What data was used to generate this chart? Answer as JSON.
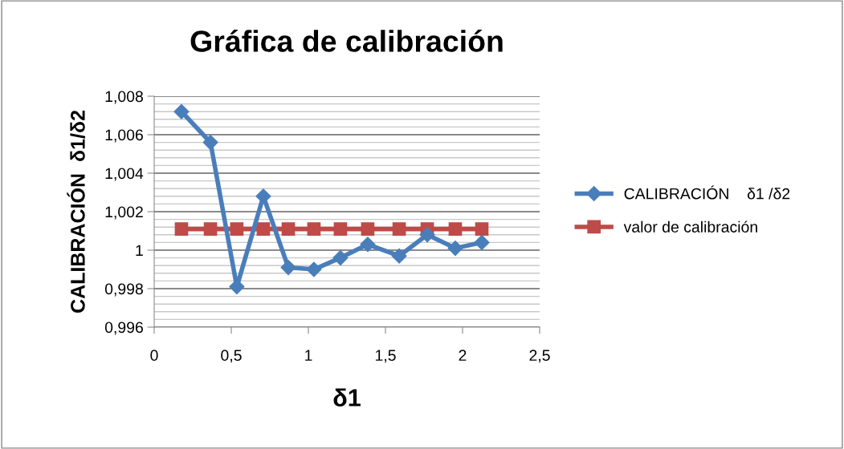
{
  "chart_data": {
    "type": "line",
    "title": "Gráfica de calibración",
    "xlabel": "δ1",
    "ylabel": "CALIBRACIÓN  δ1/δ2",
    "x": [
      0.177,
      0.365,
      0.536,
      0.708,
      0.87,
      1.036,
      1.208,
      1.385,
      1.589,
      1.771,
      1.953,
      2.125
    ],
    "series": [
      {
        "name": "CALIBRACIÓN    δ1 /δ2",
        "color": "#4a7ebb",
        "marker": "diamond",
        "values": [
          1.0072,
          1.0056,
          0.9981,
          1.0028,
          0.9991,
          0.999,
          0.9996,
          1.0003,
          0.9997,
          1.0008,
          1.0001,
          1.0004
        ]
      },
      {
        "name": "valor de calibración",
        "color": "#be4b48",
        "marker": "square",
        "values": [
          1.0011,
          1.0011,
          1.0011,
          1.0011,
          1.0011,
          1.0011,
          1.0011,
          1.0011,
          1.0011,
          1.0011,
          1.0011,
          1.0011
        ]
      }
    ],
    "xlim": [
      0,
      2.5
    ],
    "xticks": [
      {
        "value": 0,
        "label": "0"
      },
      {
        "value": 0.5,
        "label": "0,5"
      },
      {
        "value": 1,
        "label": "1"
      },
      {
        "value": 1.5,
        "label": "1,5"
      },
      {
        "value": 2,
        "label": "2"
      },
      {
        "value": 2.5,
        "label": "2,5"
      }
    ],
    "ylim": [
      0.996,
      1.008
    ],
    "yticks": [
      {
        "value": 0.996,
        "label": "0,996"
      },
      {
        "value": 0.998,
        "label": "0,998"
      },
      {
        "value": 1,
        "label": "1"
      },
      {
        "value": 1.002,
        "label": "1,002"
      },
      {
        "value": 1.004,
        "label": "1,004"
      },
      {
        "value": 1.006,
        "label": "1,006"
      },
      {
        "value": 1.008,
        "label": "1,008"
      }
    ],
    "grid": "y",
    "legend": "right",
    "line_style": "solid"
  }
}
